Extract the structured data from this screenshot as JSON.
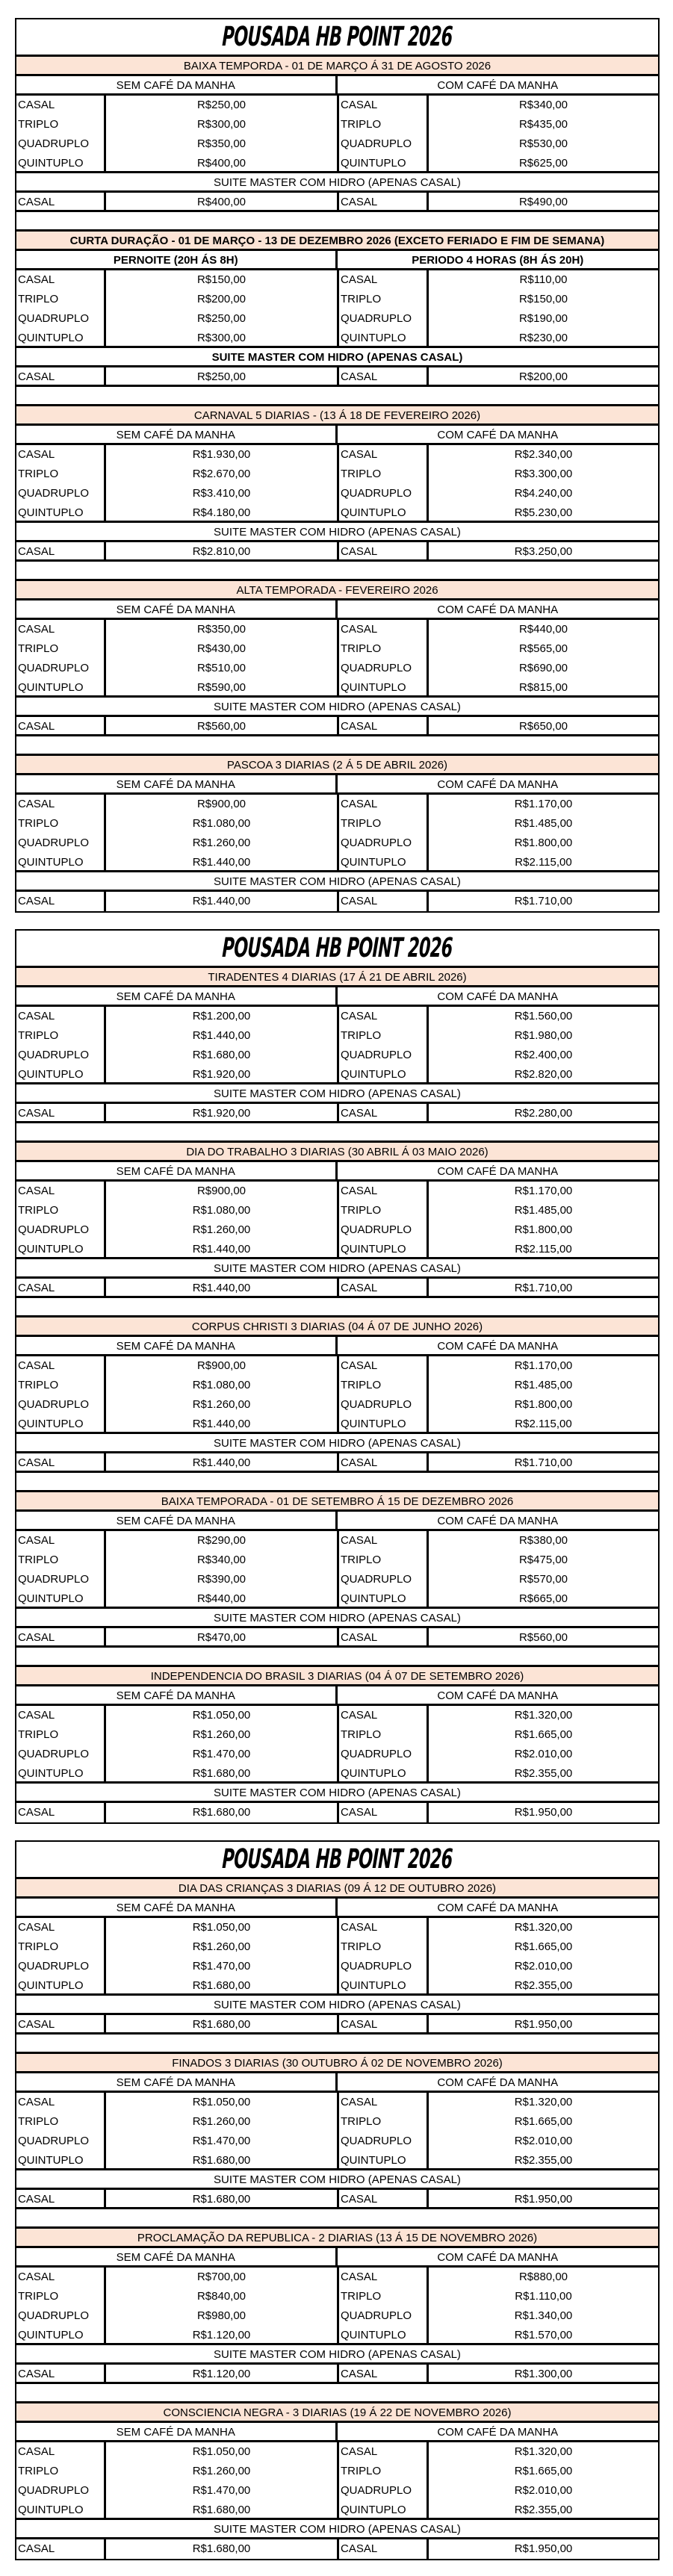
{
  "title": "POUSADA HB POINT 2026",
  "colors": {
    "section_header_bg": "#fce4d6",
    "border": "#000000"
  },
  "pages": [
    {
      "sections": [
        {
          "title": "BAIXA TEMPORDA - 01 DE MARÇO Á 31 DE AGOSTO 2026",
          "left_header": "SEM CAFÉ DA MANHA",
          "right_header": "COM CAFÉ DA MANHA",
          "rows": [
            [
              "CASAL",
              "R$250,00",
              "CASAL",
              "R$340,00"
            ],
            [
              "TRIPLO",
              "R$300,00",
              "TRIPLO",
              "R$435,00"
            ],
            [
              "QUADRUPLO",
              "R$350,00",
              "QUADRUPLO",
              "R$530,00"
            ],
            [
              "QUINTUPLO",
              "R$400,00",
              "QUINTUPLO",
              "R$625,00"
            ]
          ],
          "suite_header": "SUITE MASTER COM HIDRO (APENAS CASAL)",
          "suite_row": [
            "CASAL",
            "R$400,00",
            "CASAL",
            "R$490,00"
          ]
        },
        {
          "title": "CURTA DURAÇÃO - 01 DE MARÇO - 13 DE DEZEMBRO 2026 (EXCETO FERIADO E FIM DE SEMANA)",
          "bold": true,
          "left_header": "PERNOITE (20H ÁS 8H)",
          "right_header": "PERIODO 4 HORAS (8H ÁS 20H)",
          "rows": [
            [
              "CASAL",
              "R$150,00",
              "CASAL",
              "R$110,00"
            ],
            [
              "TRIPLO",
              "R$200,00",
              "TRIPLO",
              "R$150,00"
            ],
            [
              "QUADRUPLO",
              "R$250,00",
              "QUADRUPLO",
              "R$190,00"
            ],
            [
              "QUINTUPLO",
              "R$300,00",
              "QUINTUPLO",
              "R$230,00"
            ]
          ],
          "suite_header": "SUITE MASTER COM HIDRO (APENAS CASAL)",
          "suite_row": [
            "CASAL",
            "R$250,00",
            "CASAL",
            "R$200,00"
          ]
        },
        {
          "title": "CARNAVAL 5 DIARIAS - (13 Á 18 DE FEVEREIRO 2026)",
          "left_header": "SEM CAFÉ DA MANHA",
          "right_header": "COM CAFÉ DA MANHA",
          "rows": [
            [
              "CASAL",
              "R$1.930,00",
              "CASAL",
              "R$2.340,00"
            ],
            [
              "TRIPLO",
              "R$2.670,00",
              "TRIPLO",
              "R$3.300,00"
            ],
            [
              "QUADRUPLO",
              "R$3.410,00",
              "QUADRUPLO",
              "R$4.240,00"
            ],
            [
              "QUINTUPLO",
              "R$4.180,00",
              "QUINTUPLO",
              "R$5.230,00"
            ]
          ],
          "suite_header": "SUITE MASTER COM HIDRO (APENAS CASAL)",
          "suite_row": [
            "CASAL",
            "R$2.810,00",
            "CASAL",
            "R$3.250,00"
          ]
        },
        {
          "title": "ALTA TEMPORADA - FEVEREIRO 2026",
          "left_header": "SEM CAFÉ DA MANHA",
          "right_header": "COM CAFÉ DA MANHA",
          "rows": [
            [
              "CASAL",
              "R$350,00",
              "CASAL",
              "R$440,00"
            ],
            [
              "TRIPLO",
              "R$430,00",
              "TRIPLO",
              "R$565,00"
            ],
            [
              "QUADRUPLO",
              "R$510,00",
              "QUADRUPLO",
              "R$690,00"
            ],
            [
              "QUINTUPLO",
              "R$590,00",
              "QUINTUPLO",
              "R$815,00"
            ]
          ],
          "suite_header": "SUITE MASTER COM HIDRO (APENAS CASAL)",
          "suite_row": [
            "CASAL",
            "R$560,00",
            "CASAL",
            "R$650,00"
          ]
        },
        {
          "title": "PASCOA 3 DIARIAS (2 Á 5 DE ABRIL 2026)",
          "left_header": "SEM CAFÉ DA MANHA",
          "right_header": "COM CAFÉ DA MANHA",
          "rows": [
            [
              "CASAL",
              "R$900,00",
              "CASAL",
              "R$1.170,00"
            ],
            [
              "TRIPLO",
              "R$1.080,00",
              "TRIPLO",
              "R$1.485,00"
            ],
            [
              "QUADRUPLO",
              "R$1.260,00",
              "QUADRUPLO",
              "R$1.800,00"
            ],
            [
              "QUINTUPLO",
              "R$1.440,00",
              "QUINTUPLO",
              "R$2.115,00"
            ]
          ],
          "suite_header": "SUITE MASTER COM HIDRO (APENAS CASAL)",
          "suite_row": [
            "CASAL",
            "R$1.440,00",
            "CASAL",
            "R$1.710,00"
          ]
        }
      ]
    },
    {
      "sections": [
        {
          "title": "TIRADENTES 4 DIARIAS (17 Á 21 DE ABRIL 2026)",
          "left_header": "SEM CAFÉ DA MANHA",
          "right_header": "COM CAFÉ DA MANHA",
          "rows": [
            [
              "CASAL",
              "R$1.200,00",
              "CASAL",
              "R$1.560,00"
            ],
            [
              "TRIPLO",
              "R$1.440,00",
              "TRIPLO",
              "R$1.980,00"
            ],
            [
              "QUADRUPLO",
              "R$1.680,00",
              "QUADRUPLO",
              "R$2.400,00"
            ],
            [
              "QUINTUPLO",
              "R$1.920,00",
              "QUINTUPLO",
              "R$2.820,00"
            ]
          ],
          "suite_header": "SUITE MASTER COM HIDRO (APENAS CASAL)",
          "suite_row": [
            "CASAL",
            "R$1.920,00",
            "CASAL",
            "R$2.280,00"
          ]
        },
        {
          "title": "DIA DO TRABALHO 3 DIARIAS (30 ABRIL Á 03 MAIO 2026)",
          "left_header": "SEM CAFÉ DA MANHA",
          "right_header": "COM CAFÉ DA MANHA",
          "rows": [
            [
              "CASAL",
              "R$900,00",
              "CASAL",
              "R$1.170,00"
            ],
            [
              "TRIPLO",
              "R$1.080,00",
              "TRIPLO",
              "R$1.485,00"
            ],
            [
              "QUADRUPLO",
              "R$1.260,00",
              "QUADRUPLO",
              "R$1.800,00"
            ],
            [
              "QUINTUPLO",
              "R$1.440,00",
              "QUINTUPLO",
              "R$2.115,00"
            ]
          ],
          "suite_header": "SUITE MASTER COM HIDRO (APENAS CASAL)",
          "suite_row": [
            "CASAL",
            "R$1.440,00",
            "CASAL",
            "R$1.710,00"
          ]
        },
        {
          "title": "CORPUS CHRISTI 3 DIARIAS (04 Á 07 DE JUNHO 2026)",
          "left_header": "SEM CAFÉ DA MANHA",
          "right_header": "COM CAFÉ DA MANHA",
          "rows": [
            [
              "CASAL",
              "R$900,00",
              "CASAL",
              "R$1.170,00"
            ],
            [
              "TRIPLO",
              "R$1.080,00",
              "TRIPLO",
              "R$1.485,00"
            ],
            [
              "QUADRUPLO",
              "R$1.260,00",
              "QUADRUPLO",
              "R$1.800,00"
            ],
            [
              "QUINTUPLO",
              "R$1.440,00",
              "QUINTUPLO",
              "R$2.115,00"
            ]
          ],
          "suite_header": "SUITE MASTER COM HIDRO (APENAS CASAL)",
          "suite_row": [
            "CASAL",
            "R$1.440,00",
            "CASAL",
            "R$1.710,00"
          ]
        },
        {
          "title": "BAIXA TEMPORADA - 01 DE SETEMBRO Á 15 DE DEZEMBRO 2026",
          "left_header": "SEM CAFÉ DA MANHA",
          "right_header": "COM CAFÉ DA MANHA",
          "rows": [
            [
              "CASAL",
              "R$290,00",
              "CASAL",
              "R$380,00"
            ],
            [
              "TRIPLO",
              "R$340,00",
              "TRIPLO",
              "R$475,00"
            ],
            [
              "QUADRUPLO",
              "R$390,00",
              "QUADRUPLO",
              "R$570,00"
            ],
            [
              "QUINTUPLO",
              "R$440,00",
              "QUINTUPLO",
              "R$665,00"
            ]
          ],
          "suite_header": "SUITE MASTER COM HIDRO (APENAS CASAL)",
          "suite_row": [
            "CASAL",
            "R$470,00",
            "CASAL",
            "R$560,00"
          ]
        },
        {
          "title": "INDEPENDENCIA DO BRASIL 3 DIARIAS (04 Á 07 DE SETEMBRO 2026)",
          "left_header": "SEM CAFÉ DA MANHA",
          "right_header": "COM CAFÉ DA MANHA",
          "rows": [
            [
              "CASAL",
              "R$1.050,00",
              "CASAL",
              "R$1.320,00"
            ],
            [
              "TRIPLO",
              "R$1.260,00",
              "TRIPLO",
              "R$1.665,00"
            ],
            [
              "QUADRUPLO",
              "R$1.470,00",
              "QUADRUPLO",
              "R$2.010,00"
            ],
            [
              "QUINTUPLO",
              "R$1.680,00",
              "QUINTUPLO",
              "R$2.355,00"
            ]
          ],
          "suite_header": "SUITE MASTER COM HIDRO (APENAS CASAL)",
          "suite_row": [
            "CASAL",
            "R$1.680,00",
            "CASAL",
            "R$1.950,00"
          ]
        }
      ]
    },
    {
      "sections": [
        {
          "title": "DIA DAS CRIANÇAS 3 DIARIAS (09 Á 12 DE OUTUBRO 2026)",
          "left_header": "SEM CAFÉ DA MANHA",
          "right_header": "COM CAFÉ DA MANHA",
          "rows": [
            [
              "CASAL",
              "R$1.050,00",
              "CASAL",
              "R$1.320,00"
            ],
            [
              "TRIPLO",
              "R$1.260,00",
              "TRIPLO",
              "R$1.665,00"
            ],
            [
              "QUADRUPLO",
              "R$1.470,00",
              "QUADRUPLO",
              "R$2.010,00"
            ],
            [
              "QUINTUPLO",
              "R$1.680,00",
              "QUINTUPLO",
              "R$2.355,00"
            ]
          ],
          "suite_header": "SUITE MASTER COM HIDRO (APENAS CASAL)",
          "suite_row": [
            "CASAL",
            "R$1.680,00",
            "CASAL",
            "R$1.950,00"
          ]
        },
        {
          "title": "FINADOS 3 DIARIAS (30 OUTUBRO Á 02 DE NOVEMBRO 2026)",
          "left_header": "SEM CAFÉ DA MANHA",
          "right_header": "COM CAFÉ DA MANHA",
          "rows": [
            [
              "CASAL",
              "R$1.050,00",
              "CASAL",
              "R$1.320,00"
            ],
            [
              "TRIPLO",
              "R$1.260,00",
              "TRIPLO",
              "R$1.665,00"
            ],
            [
              "QUADRUPLO",
              "R$1.470,00",
              "QUADRUPLO",
              "R$2.010,00"
            ],
            [
              "QUINTUPLO",
              "R$1.680,00",
              "QUINTUPLO",
              "R$2.355,00"
            ]
          ],
          "suite_header": "SUITE MASTER COM HIDRO (APENAS CASAL)",
          "suite_row": [
            "CASAL",
            "R$1.680,00",
            "CASAL",
            "R$1.950,00"
          ]
        },
        {
          "title": "PROCLAMAÇÃO DA REPUBLICA - 2 DIARIAS (13 Á 15 DE NOVEMBRO 2026)",
          "left_header": "SEM CAFÉ DA MANHA",
          "right_header": "COM CAFÉ DA MANHA",
          "rows": [
            [
              "CASAL",
              "R$700,00",
              "CASAL",
              "R$880,00"
            ],
            [
              "TRIPLO",
              "R$840,00",
              "TRIPLO",
              "R$1.110,00"
            ],
            [
              "QUADRUPLO",
              "R$980,00",
              "QUADRUPLO",
              "R$1.340,00"
            ],
            [
              "QUINTUPLO",
              "R$1.120,00",
              "QUINTUPLO",
              "R$1.570,00"
            ]
          ],
          "suite_header": "SUITE MASTER COM HIDRO (APENAS CASAL)",
          "suite_row": [
            "CASAL",
            "R$1.120,00",
            "CASAL",
            "R$1.300,00"
          ]
        },
        {
          "title": "CONSCIENCIA NEGRA - 3 DIARIAS (19 Á 22 DE NOVEMBRO 2026)",
          "left_header": "SEM CAFÉ DA MANHA",
          "right_header": "COM CAFÉ DA MANHA",
          "rows": [
            [
              "CASAL",
              "R$1.050,00",
              "CASAL",
              "R$1.320,00"
            ],
            [
              "TRIPLO",
              "R$1.260,00",
              "TRIPLO",
              "R$1.665,00"
            ],
            [
              "QUADRUPLO",
              "R$1.470,00",
              "QUADRUPLO",
              "R$2.010,00"
            ],
            [
              "QUINTUPLO",
              "R$1.680,00",
              "QUINTUPLO",
              "R$2.355,00"
            ]
          ],
          "suite_header": "SUITE MASTER COM HIDRO (APENAS CASAL)",
          "suite_row": [
            "CASAL",
            "R$1.680,00",
            "CASAL",
            "R$1.950,00"
          ]
        }
      ]
    }
  ]
}
